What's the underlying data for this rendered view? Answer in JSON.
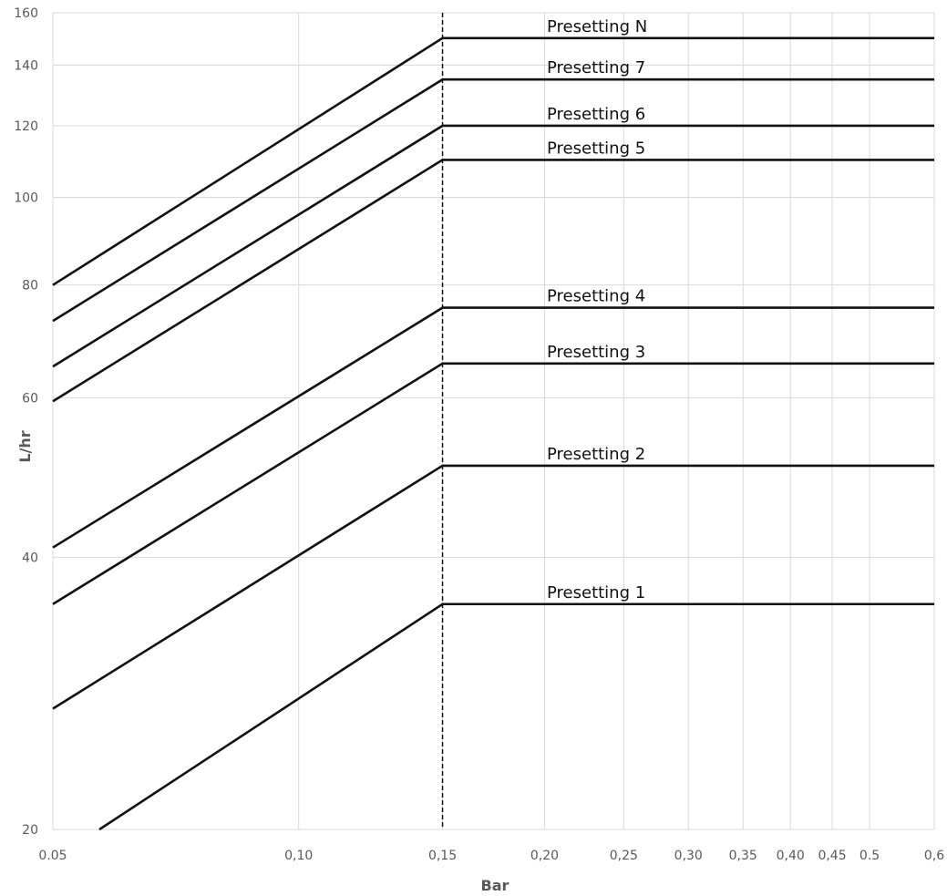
{
  "chart_data": {
    "type": "line",
    "xlabel": "Bar",
    "ylabel": "L/hr",
    "x_scale": "log",
    "y_scale": "log",
    "xlim": [
      0.05,
      0.6
    ],
    "ylim": [
      20,
      160
    ],
    "grid": true,
    "x_ticks": [
      {
        "value": 0.05,
        "label": "0.05"
      },
      {
        "value": 0.1,
        "label": "0,10"
      },
      {
        "value": 0.15,
        "label": "0,15"
      },
      {
        "value": 0.2,
        "label": "0,20"
      },
      {
        "value": 0.25,
        "label": "0,25"
      },
      {
        "value": 0.3,
        "label": "0,30"
      },
      {
        "value": 0.35,
        "label": "0,35"
      },
      {
        "value": 0.4,
        "label": "0,40"
      },
      {
        "value": 0.45,
        "label": "0,45"
      },
      {
        "value": 0.5,
        "label": "0.5"
      },
      {
        "value": 0.6,
        "label": "0,6"
      }
    ],
    "y_ticks": [
      {
        "value": 20,
        "label": "20"
      },
      {
        "value": 40,
        "label": "40"
      },
      {
        "value": 60,
        "label": "60"
      },
      {
        "value": 80,
        "label": "80"
      },
      {
        "value": 100,
        "label": "100"
      },
      {
        "value": 120,
        "label": "120"
      },
      {
        "value": 140,
        "label": "140"
      },
      {
        "value": 160,
        "label": "160"
      }
    ],
    "reference_line": {
      "x": 0.15,
      "style": "dashed"
    },
    "series": [
      {
        "name": "Presetting N",
        "points": [
          [
            0.05,
            80
          ],
          [
            0.15,
            150
          ],
          [
            0.6,
            150
          ]
        ]
      },
      {
        "name": "Presetting 7",
        "points": [
          [
            0.05,
            73
          ],
          [
            0.15,
            135
          ],
          [
            0.6,
            135
          ]
        ]
      },
      {
        "name": "Presetting 6",
        "points": [
          [
            0.05,
            65
          ],
          [
            0.15,
            120
          ],
          [
            0.6,
            120
          ]
        ]
      },
      {
        "name": "Presetting 5",
        "points": [
          [
            0.05,
            59.5
          ],
          [
            0.15,
            110
          ],
          [
            0.6,
            110
          ]
        ]
      },
      {
        "name": "Presetting 4",
        "points": [
          [
            0.05,
            41
          ],
          [
            0.15,
            75.5
          ],
          [
            0.6,
            75.5
          ]
        ]
      },
      {
        "name": "Presetting 3",
        "points": [
          [
            0.05,
            35.5
          ],
          [
            0.15,
            65.5
          ],
          [
            0.6,
            65.5
          ]
        ]
      },
      {
        "name": "Presetting 2",
        "points": [
          [
            0.05,
            27.2
          ],
          [
            0.15,
            50.5
          ],
          [
            0.6,
            50.5
          ]
        ]
      },
      {
        "name": "Presetting 1",
        "points": [
          [
            0.057,
            20
          ],
          [
            0.15,
            35.5
          ],
          [
            0.6,
            35.5
          ]
        ]
      }
    ]
  }
}
